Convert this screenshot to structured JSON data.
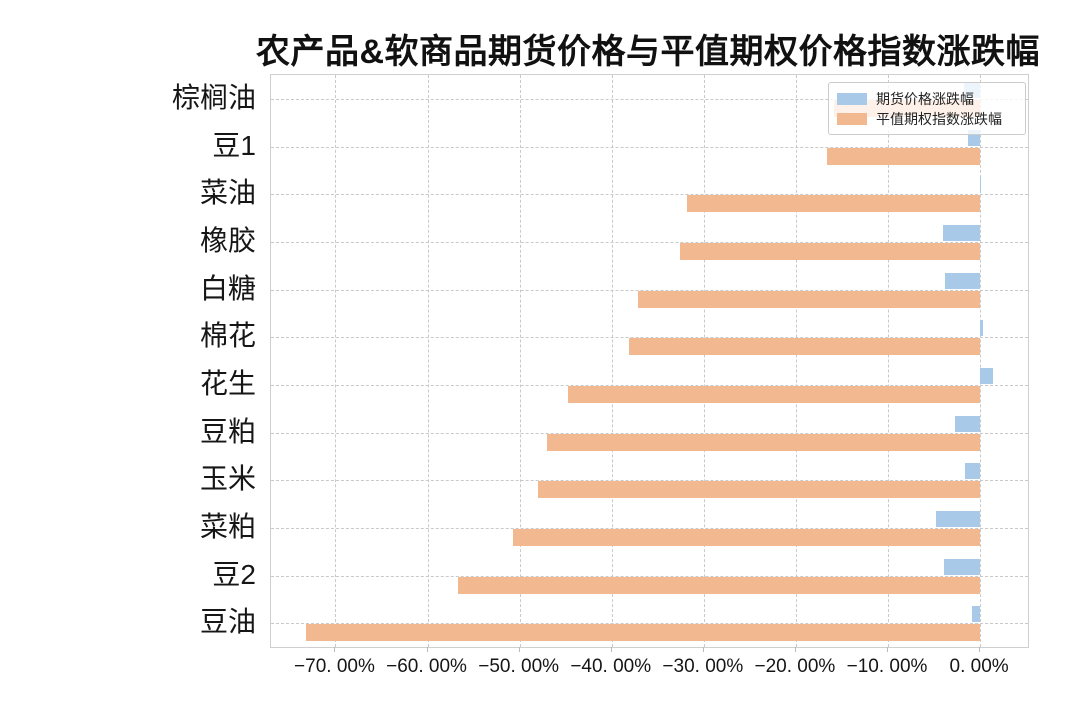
{
  "title": "农产品&软商品期货价格与平值期权价格指数涨跌幅",
  "legend": {
    "items": [
      {
        "label": "期货价格涨跌幅",
        "color": "#A9C9E8"
      },
      {
        "label": "平值期权指数涨跌幅",
        "color": "#F2B990"
      }
    ]
  },
  "chart_data": {
    "type": "bar",
    "orientation": "horizontal",
    "title": "农产品&软商品期货价格与平值期权价格指数涨跌幅",
    "categories": [
      "棕榈油",
      "豆1",
      "菜油",
      "橡胶",
      "白糖",
      "棉花",
      "花生",
      "豆粕",
      "玉米",
      "菜粕",
      "豆2",
      "豆油"
    ],
    "series": [
      {
        "name": "期货价格涨跌幅",
        "color": "#A9C9E8",
        "unit": "%",
        "values": [
          -1.7,
          -1.3,
          -0.05,
          -4.0,
          -3.8,
          0.35,
          1.4,
          -2.7,
          -1.6,
          -4.8,
          -3.9,
          -0.9
        ]
      },
      {
        "name": "平值期权指数涨跌幅",
        "color": "#F2B990",
        "unit": "%",
        "values": [
          -15.9,
          -16.6,
          -31.8,
          -32.6,
          -37.1,
          -38.1,
          -44.7,
          -47.0,
          -48.0,
          -50.7,
          -56.7,
          -73.2
        ]
      }
    ],
    "x_ticks": [
      -70,
      -60,
      -50,
      -40,
      -30,
      -20,
      -10,
      0
    ],
    "x_tick_labels": [
      "−70. 00%",
      "−60. 00%",
      "−50. 00%",
      "−40. 00%",
      "−30. 00%",
      "−20. 00%",
      "−10. 00%",
      "0. 00%"
    ],
    "xlim": [
      -77,
      5.2
    ],
    "grid": true,
    "legend_position": "upper right",
    "note": "values are percent change; negative = decline"
  }
}
